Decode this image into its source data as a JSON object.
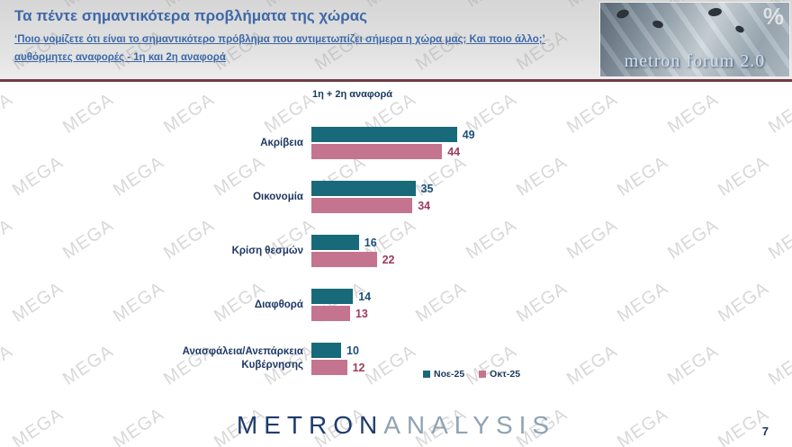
{
  "watermark": {
    "text": "MEGA"
  },
  "header": {
    "title": "Τα πέντε σημαντικότερα προβλήματα της χώρας",
    "subtitle_line1": "‘Ποιο νομίζετε ότι είναι το σημαντικότερο πρόβλημα που αντιμετωπίζει σήμερα η χώρα μας; Και ποιο άλλο;’",
    "subtitle_line2": "αυθόρμητες αναφορές - 1η και 2η αναφορά",
    "logo": {
      "text": "metron forum 2.0",
      "percent": "%"
    }
  },
  "chart_data": {
    "type": "bar",
    "orientation": "horizontal",
    "title": "1η + 2η αναφορά",
    "categories": [
      "Ακρίβεια",
      "Οικονομία",
      "Κρίση θεσμών",
      "Διαφθορά",
      "Ανασφάλεια/Ανεπάρκεια\nΚυβέρνησης"
    ],
    "series": [
      {
        "name": "Νοε-25",
        "color": "#186a7a",
        "value_color": "#1f4e79",
        "values": [
          49,
          35,
          16,
          14,
          10
        ]
      },
      {
        "name": "Οκτ-25",
        "color": "#c4748f",
        "value_color": "#9e3b60",
        "values": [
          44,
          34,
          22,
          13,
          12
        ]
      }
    ],
    "xlim": [
      0,
      60
    ],
    "value_labels": true,
    "grid": false,
    "legend_position": "bottom-right"
  },
  "footer": {
    "brand_primary": "METRON",
    "brand_secondary": "ANALYSIS",
    "page_number": "7"
  }
}
